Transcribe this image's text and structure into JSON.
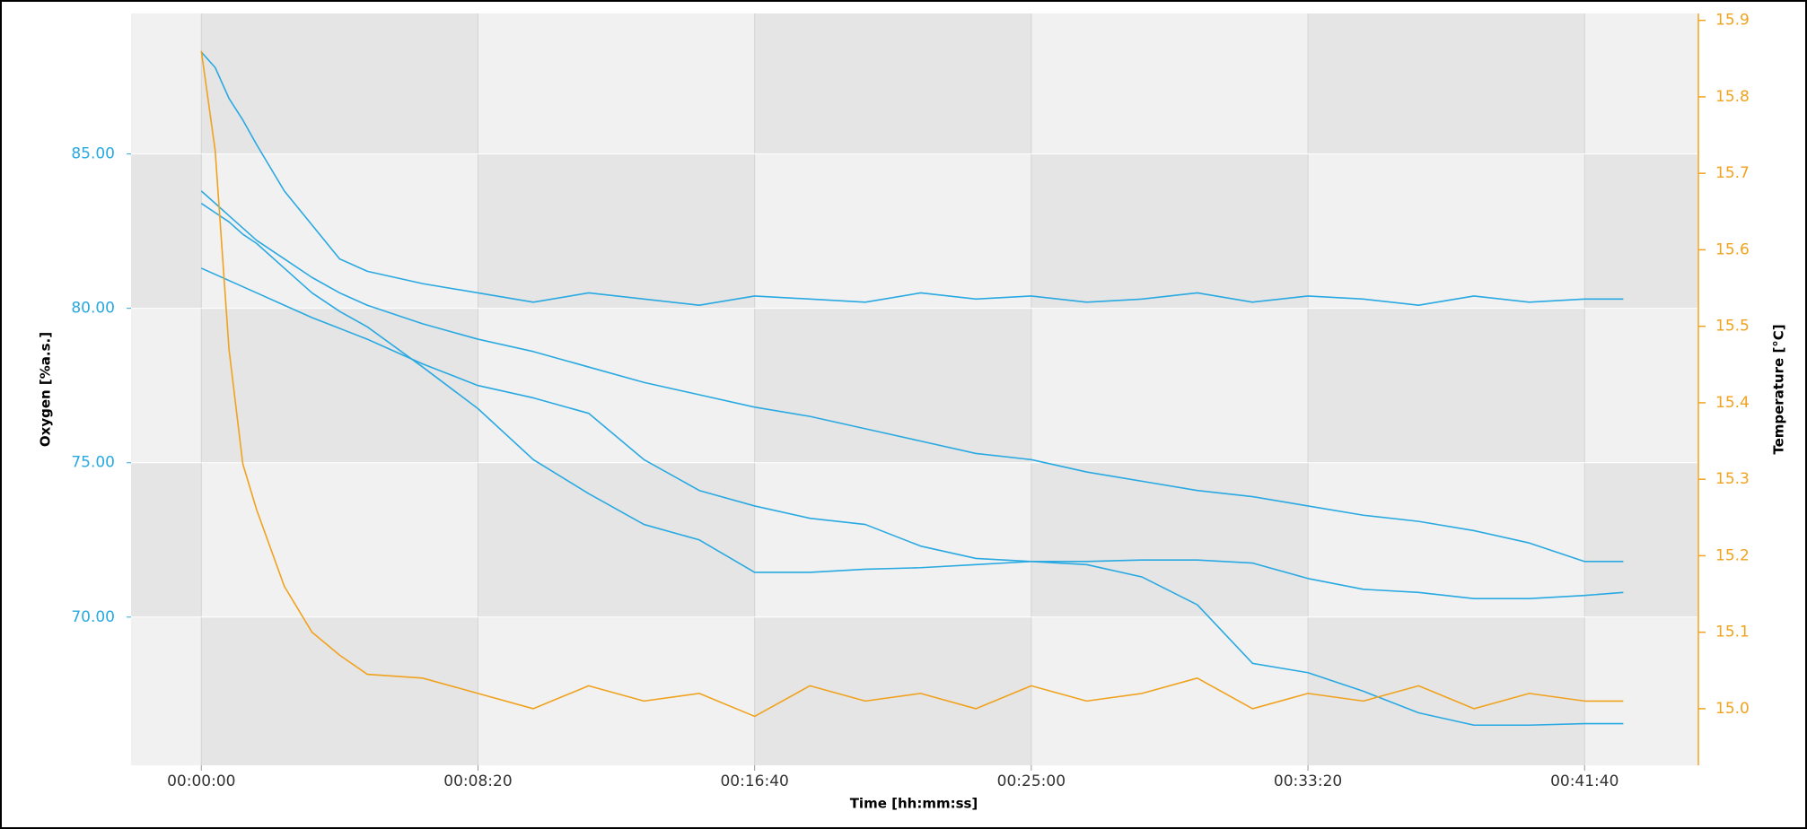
{
  "chart_data": {
    "type": "line",
    "x_label": "Time [hh:mm:ss]",
    "y_label": "Oxygen [%a.s.]",
    "y2_label": "Temperature [°C]",
    "x": [
      0,
      25,
      50,
      75,
      100,
      150,
      200,
      250,
      300,
      400,
      500,
      600,
      700,
      800,
      900,
      1000,
      1100,
      1200,
      1300,
      1400,
      1500,
      1600,
      1700,
      1800,
      1900,
      2000,
      2100,
      2200,
      2300,
      2400,
      2500,
      2570
    ],
    "xlim": [
      -127,
      2704
    ],
    "xticks": [
      {
        "value": 0,
        "label": "00:00:00"
      },
      {
        "value": 500,
        "label": "00:08:20"
      },
      {
        "value": 1000,
        "label": "00:16:40"
      },
      {
        "value": 1500,
        "label": "00:25:00"
      },
      {
        "value": 2000,
        "label": "00:33:20"
      },
      {
        "value": 2500,
        "label": "00:41:40"
      }
    ],
    "ylim": [
      65.2,
      89.55
    ],
    "yticks": [
      {
        "value": 70,
        "label": "70.00"
      },
      {
        "value": 75,
        "label": "75.00"
      },
      {
        "value": 80,
        "label": "80.00"
      },
      {
        "value": 85,
        "label": "85.00"
      }
    ],
    "y2lim": [
      14.926,
      15.909
    ],
    "y2ticks": [
      {
        "value": 15,
        "label": "15.0"
      },
      15.1,
      15.2,
      15.3,
      15.4,
      15.5,
      15.6,
      15.7,
      15.8,
      15.9
    ],
    "y_color": "#29a9e1",
    "y2_color": "#f0a21e",
    "grid": true,
    "series": [
      {
        "color": "#29a9e1",
        "values": [
          88.3,
          87.8,
          86.8,
          86.1,
          85.3,
          83.8,
          82.7,
          81.6,
          81.2,
          80.8,
          80.5,
          80.2,
          80.5,
          80.3,
          80.1,
          80.4,
          80.3,
          80.2,
          80.5,
          80.3,
          80.4,
          80.2,
          80.3,
          80.5,
          80.2,
          80.4,
          80.3,
          80.1,
          80.4,
          80.2,
          80.3,
          80.3
        ]
      },
      {
        "color": "#29a9e1",
        "values": [
          83.8,
          83.4,
          83.0,
          82.6,
          82.2,
          81.6,
          81.0,
          80.5,
          80.1,
          79.5,
          79.0,
          78.6,
          78.1,
          77.6,
          77.2,
          76.8,
          76.5,
          76.1,
          75.7,
          75.3,
          75.1,
          74.7,
          74.4,
          74.1,
          73.9,
          73.6,
          73.3,
          73.1,
          72.8,
          72.4,
          71.8,
          71.8
        ]
      },
      {
        "color": "#29a9e1",
        "values": [
          83.4,
          83.1,
          82.8,
          82.4,
          82.1,
          81.3,
          80.5,
          79.9,
          79.4,
          78.1,
          76.75,
          75.1,
          74.0,
          73.0,
          72.5,
          71.45,
          71.45,
          71.55,
          71.6,
          71.7,
          71.8,
          71.8,
          71.85,
          71.85,
          71.75,
          71.25,
          70.9,
          70.8,
          70.6,
          70.6,
          70.7,
          70.8
        ]
      },
      {
        "color": "#29a9e1",
        "values": [
          81.3,
          81.1,
          80.9,
          80.7,
          80.5,
          80.1,
          79.7,
          79.35,
          79.0,
          78.2,
          77.5,
          77.1,
          76.6,
          75.1,
          74.1,
          73.6,
          73.2,
          73.0,
          72.3,
          71.9,
          71.8,
          71.7,
          71.3,
          70.4,
          68.5,
          68.2,
          67.6,
          66.9,
          66.5,
          66.5,
          66.55,
          66.55
        ]
      },
      {
        "color": "#f0a21e",
        "axis": "y2",
        "values": [
          15.86,
          15.73,
          15.47,
          15.32,
          15.26,
          15.16,
          15.1,
          15.07,
          15.045,
          15.04,
          15.02,
          15.0,
          15.03,
          15.01,
          15.02,
          14.99,
          15.03,
          15.01,
          15.02,
          15.0,
          15.03,
          15.01,
          15.02,
          15.04,
          15.0,
          15.02,
          15.01,
          15.03,
          15.0,
          15.02,
          15.01,
          15.01
        ]
      }
    ]
  }
}
